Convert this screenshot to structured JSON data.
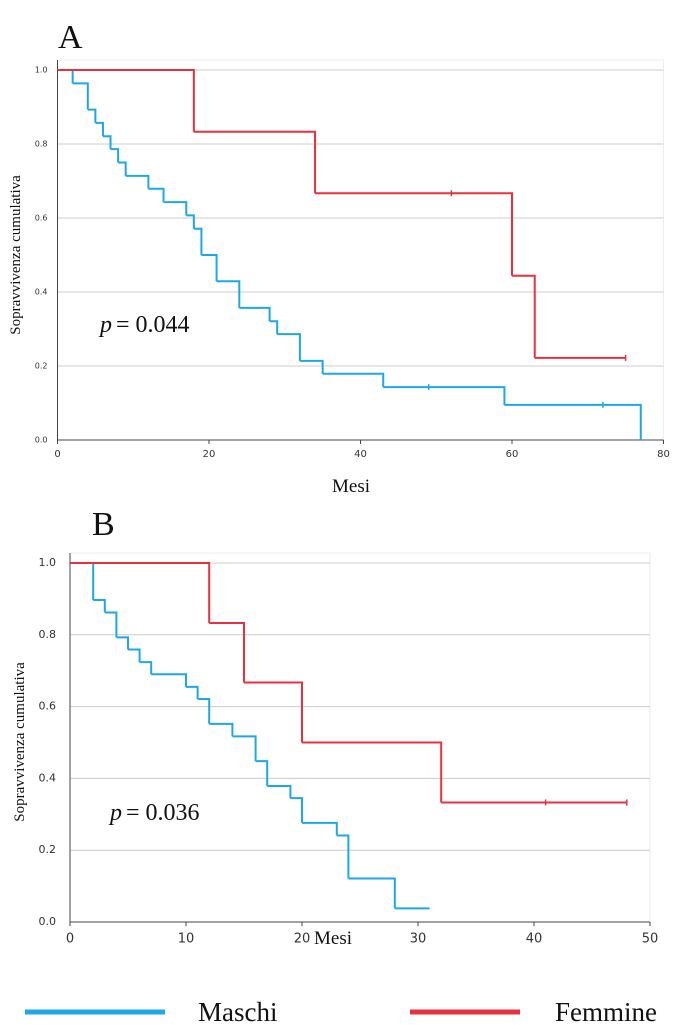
{
  "chart_data": [
    {
      "type": "step",
      "panel": "A",
      "xlabel": "Mesi",
      "ylabel": "Sopravvivenza cumulativa",
      "annotation": {
        "symbol": "p",
        "value": "= 0.044"
      },
      "xlim": [
        0,
        80
      ],
      "xticks": [
        0,
        20,
        40,
        60,
        80
      ],
      "ylim": [
        0,
        1
      ],
      "yticks": [
        {
          "value": 0,
          "label": "0.0"
        },
        0.2,
        0.4,
        0.6,
        0.8,
        {
          "value": 1,
          "label": "1.0"
        }
      ],
      "grid": true,
      "series": [
        {
          "color": "#1ea7e8",
          "x": [
            0,
            2,
            4,
            5,
            6,
            7,
            8,
            9,
            12,
            14,
            17,
            18,
            19,
            21,
            24,
            28,
            29,
            32,
            35,
            43,
            59,
            77
          ],
          "values": [
            1,
            0.964,
            0.893,
            0.857,
            0.821,
            0.786,
            0.75,
            0.714,
            0.679,
            0.643,
            0.607,
            0.571,
            0.5,
            0.429,
            0.357,
            0.321,
            0.286,
            0.214,
            0.179,
            0.143,
            0.095,
            0
          ],
          "censored": [
            49,
            72
          ],
          "censored_values": [
            0.143,
            0.095
          ]
        },
        {
          "color": "#e8303f",
          "x": [
            0,
            18,
            34,
            60,
            63,
            75
          ],
          "values": [
            1,
            0.833,
            0.667,
            0.444,
            0.222,
            0.222
          ],
          "censored": [
            52,
            75
          ],
          "censored_values": [
            0.667,
            0.222
          ]
        }
      ]
    },
    {
      "type": "step",
      "panel": "B",
      "xlabel": "Mesi",
      "ylabel": "Sopravvivenza cumulativa",
      "annotation": {
        "symbol": "p",
        "value": "= 0.036"
      },
      "xlim": [
        0,
        50
      ],
      "xticks": [
        0,
        10,
        20,
        30,
        40,
        50
      ],
      "ylim": [
        0,
        1
      ],
      "yticks": [
        {
          "value": 0,
          "label": "0.0"
        },
        0.2,
        0.4,
        0.6,
        0.8,
        {
          "value": 1,
          "label": "1.0"
        }
      ],
      "grid": true,
      "series": [
        {
          "name": "Maschi",
          "color": "#1ea7e8",
          "x": [
            0,
            2,
            3,
            4,
            5,
            6,
            7,
            10,
            11,
            12,
            14,
            16,
            17,
            19,
            20,
            23,
            24,
            28,
            31
          ],
          "values": [
            1,
            0.897,
            0.862,
            0.793,
            0.759,
            0.724,
            0.69,
            0.655,
            0.621,
            0.552,
            0.517,
            0.448,
            0.379,
            0.345,
            0.276,
            0.241,
            0.121,
            0.038,
            0.038
          ],
          "censored": [],
          "censored_values": []
        },
        {
          "name": "Femmine",
          "color": "#e8303f",
          "x": [
            0,
            12,
            15,
            20,
            32,
            48
          ],
          "values": [
            1,
            0.833,
            0.667,
            0.5,
            0.333,
            0.333
          ],
          "censored": [
            41,
            48
          ],
          "censored_values": [
            0.333,
            0.333
          ]
        }
      ]
    }
  ]
}
